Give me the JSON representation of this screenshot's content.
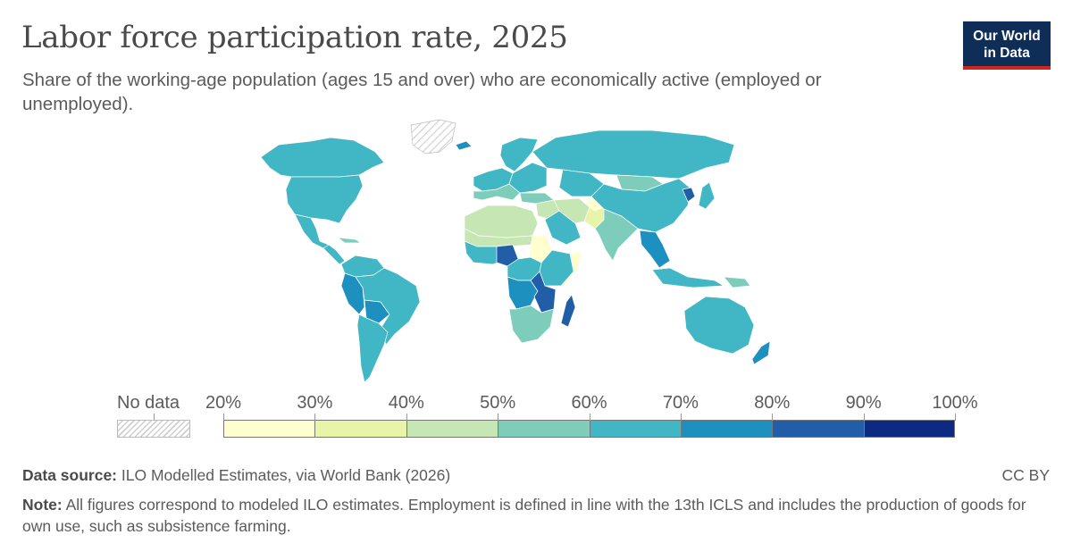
{
  "title": "Labor force participation rate, 2025",
  "subtitle": "Share of the working-age population (ages 15 and over) who are economically active (employed or unemployed).",
  "logo": {
    "line1": "Our World",
    "line2": "in Data"
  },
  "colors": {
    "no_data": "#cfcfcf",
    "bins": [
      "#fefecf",
      "#e8f5a8",
      "#c6e7b4",
      "#7ecdbb",
      "#41b6c4",
      "#1e90c0",
      "#225ea8",
      "#0c2a82"
    ],
    "border": "#ffffff"
  },
  "legend": {
    "no_data_label": "No data",
    "ticks": [
      "20%",
      "30%",
      "40%",
      "50%",
      "60%",
      "70%",
      "80%",
      "90%",
      "100%"
    ]
  },
  "map_data": {
    "type": "choropleth",
    "metric": "Labor force participation rate",
    "year": 2025,
    "regions": [
      {
        "region": "Canada",
        "bin": 4
      },
      {
        "region": "United States",
        "bin": 4
      },
      {
        "region": "Greenland",
        "bin": -1
      },
      {
        "region": "Mexico",
        "bin": 4
      },
      {
        "region": "Central America",
        "bin": 4
      },
      {
        "region": "Caribbean",
        "bin": 3
      },
      {
        "region": "Colombia / Venezuela",
        "bin": 4
      },
      {
        "region": "Peru",
        "bin": 5
      },
      {
        "region": "Bolivia",
        "bin": 5
      },
      {
        "region": "Brazil",
        "bin": 4
      },
      {
        "region": "Argentina / Chile",
        "bin": 4
      },
      {
        "region": "Western Europe",
        "bin": 4
      },
      {
        "region": "Southern Europe",
        "bin": 3
      },
      {
        "region": "Scandinavia",
        "bin": 4
      },
      {
        "region": "Iceland",
        "bin": 5
      },
      {
        "region": "Eastern Europe",
        "bin": 4
      },
      {
        "region": "Russia",
        "bin": 4
      },
      {
        "region": "Kazakhstan",
        "bin": 4
      },
      {
        "region": "Mongolia",
        "bin": 3
      },
      {
        "region": "Turkey",
        "bin": 3
      },
      {
        "region": "North Africa",
        "bin": 2
      },
      {
        "region": "Sahel",
        "bin": 2
      },
      {
        "region": "West Africa",
        "bin": 4
      },
      {
        "region": "Nigeria",
        "bin": 6
      },
      {
        "region": "Sudan",
        "bin": 0
      },
      {
        "region": "Somalia",
        "bin": 0
      },
      {
        "region": "Ethiopia / Kenya",
        "bin": 4
      },
      {
        "region": "Central Africa",
        "bin": 4
      },
      {
        "region": "DR Congo",
        "bin": 5
      },
      {
        "region": "Tanzania",
        "bin": 6
      },
      {
        "region": "Madagascar",
        "bin": 6
      },
      {
        "region": "Southern Africa",
        "bin": 3
      },
      {
        "region": "Middle East",
        "bin": 2
      },
      {
        "region": "Gulf States",
        "bin": 4
      },
      {
        "region": "Iran",
        "bin": 2
      },
      {
        "region": "Afghanistan",
        "bin": 0
      },
      {
        "region": "Pakistan",
        "bin": 1
      },
      {
        "region": "India",
        "bin": 3
      },
      {
        "region": "China",
        "bin": 4
      },
      {
        "region": "North Korea",
        "bin": 6
      },
      {
        "region": "Japan",
        "bin": 4
      },
      {
        "region": "Southeast Asia",
        "bin": 5
      },
      {
        "region": "Indonesia",
        "bin": 4
      },
      {
        "region": "Papua New Guinea",
        "bin": 3
      },
      {
        "region": "Australia",
        "bin": 4
      },
      {
        "region": "New Zealand",
        "bin": 5
      }
    ]
  },
  "footer": {
    "source_label": "Data source:",
    "source_text": "ILO Modelled Estimates, via World Bank (2026)",
    "license": "CC BY",
    "note_label": "Note:",
    "note_text": "All figures correspond to modeled ILO estimates. Employment is defined in line with the 13th ICLS and includes the production of goods for own use, such as subsistence farming."
  }
}
